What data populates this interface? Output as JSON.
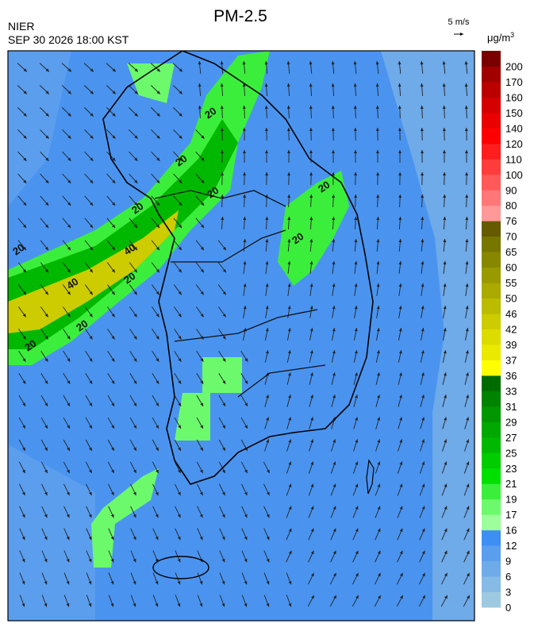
{
  "header": {
    "title": "PM-2.5",
    "agency": "NIER",
    "datetime": "SEP 30 2026 18:00 KST",
    "wind_scale": "5 m/s",
    "unit": "μg/m",
    "unit_exponent": "3"
  },
  "legend": {
    "levels": [
      0,
      3,
      6,
      9,
      12,
      16,
      17,
      19,
      21,
      23,
      25,
      27,
      29,
      31,
      33,
      36,
      37,
      39,
      42,
      46,
      50,
      55,
      60,
      65,
      70,
      76,
      80,
      90,
      100,
      110,
      120,
      140,
      150,
      160,
      170,
      200
    ],
    "colors": [
      "#9ecae1",
      "#86bbe6",
      "#6fabe9",
      "#5b9eee",
      "#3f8ef4",
      "#9cff9c",
      "#6cfa6c",
      "#3cee3c",
      "#00e000",
      "#00cc00",
      "#00b800",
      "#00a800",
      "#009600",
      "#008400",
      "#006c00",
      "#ffff00",
      "#eaea00",
      "#dcdc00",
      "#cccc00",
      "#bbbb00",
      "#aaaa00",
      "#999900",
      "#888800",
      "#777700",
      "#665a00",
      "#ff9999",
      "#ff7777",
      "#ff5959",
      "#ff3d3d",
      "#ff1e1e",
      "#ff0000",
      "#ea0000",
      "#d40000",
      "#bb0000",
      "#a00000",
      "#7a0000"
    ]
  },
  "contours": {
    "labels": [
      20,
      20,
      20,
      20,
      40,
      40,
      20,
      20,
      20,
      20,
      20,
      20
    ]
  }
}
